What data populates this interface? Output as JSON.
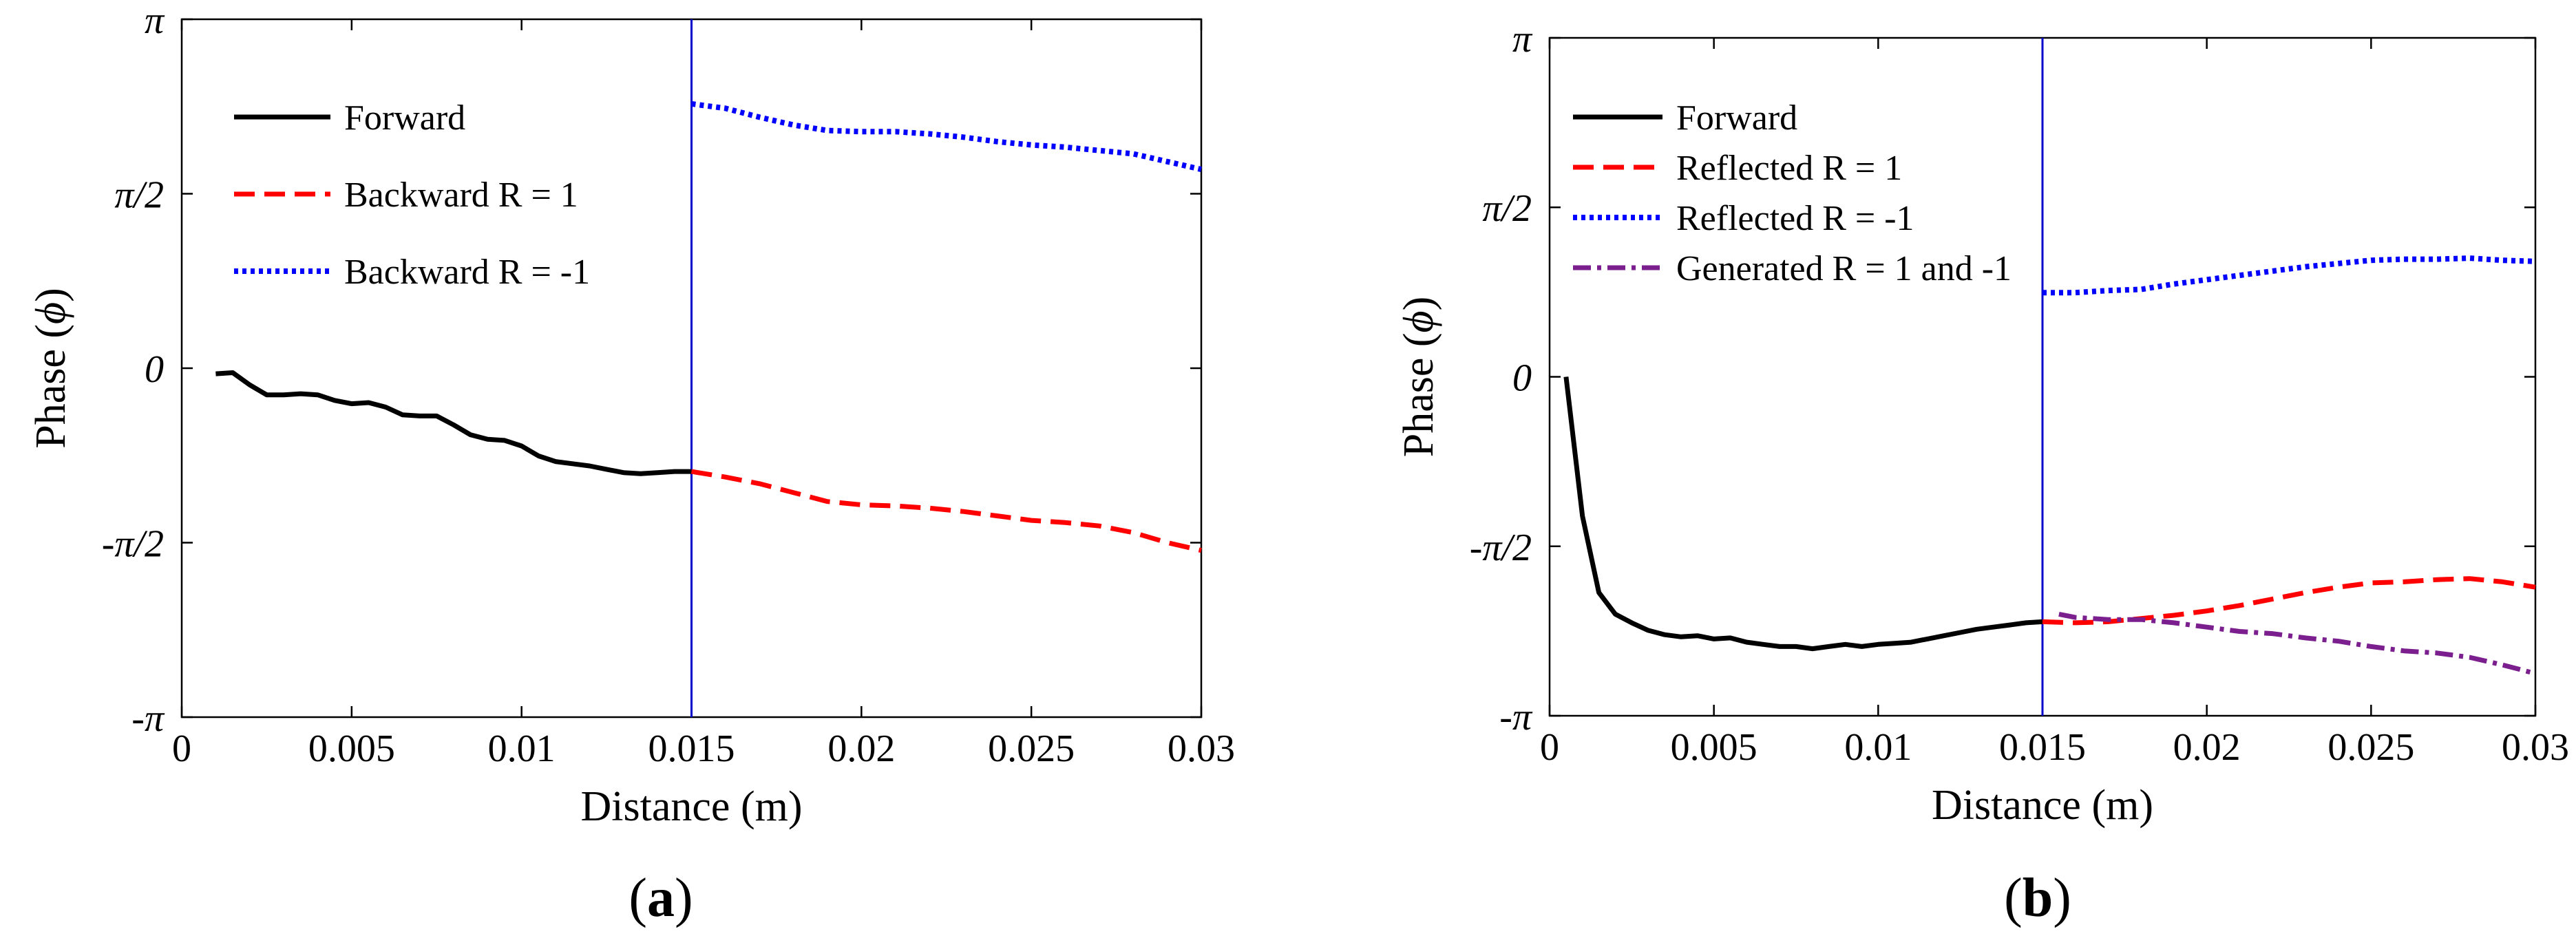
{
  "chart_data": [
    {
      "type": "line",
      "panel": "a",
      "panel_label": "a",
      "xlabel": "Distance (m)",
      "ylabel_prefix": "Phase (",
      "ylabel_symbol": "ϕ",
      "ylabel_suffix": ")",
      "xlim": [
        0,
        0.03
      ],
      "ylim": [
        -3.14159,
        3.14159
      ],
      "xticks": [
        0,
        0.005,
        0.01,
        0.015,
        0.02,
        0.025,
        0.03
      ],
      "xtick_labels": [
        "0",
        "0.005",
        "0.01",
        "0.015",
        "0.02",
        "0.025",
        "0.03"
      ],
      "yticks": [
        -3.14159,
        -1.5708,
        0,
        1.5708,
        3.14159
      ],
      "ytick_labels": [
        "-π",
        "-π/2",
        "0",
        "π/2",
        "π"
      ],
      "vline_x": 0.015,
      "vline_color": "#0000cc",
      "series": [
        {
          "name": "Forward",
          "color": "#000000",
          "style": "solid",
          "x": [
            0.001,
            0.0015,
            0.002,
            0.0025,
            0.003,
            0.0035,
            0.004,
            0.0045,
            0.005,
            0.0055,
            0.006,
            0.0065,
            0.007,
            0.0075,
            0.008,
            0.0085,
            0.009,
            0.0095,
            0.01,
            0.0105,
            0.011,
            0.0115,
            0.012,
            0.0125,
            0.013,
            0.0135,
            0.014,
            0.0145,
            0.015
          ],
          "y": [
            -0.05,
            -0.04,
            -0.15,
            -0.24,
            -0.24,
            -0.23,
            -0.24,
            -0.29,
            -0.32,
            -0.31,
            -0.35,
            -0.42,
            -0.43,
            -0.43,
            -0.51,
            -0.6,
            -0.64,
            -0.65,
            -0.7,
            -0.79,
            -0.84,
            -0.86,
            -0.88,
            -0.91,
            -0.94,
            -0.95,
            -0.94,
            -0.93,
            -0.93
          ]
        },
        {
          "name": "Backward R = 1",
          "color": "#ff0000",
          "style": "dashed",
          "x": [
            0.015,
            0.016,
            0.017,
            0.018,
            0.019,
            0.02,
            0.021,
            0.022,
            0.023,
            0.024,
            0.025,
            0.026,
            0.027,
            0.028,
            0.029,
            0.03
          ],
          "y": [
            -0.93,
            -0.98,
            -1.04,
            -1.12,
            -1.2,
            -1.23,
            -1.24,
            -1.26,
            -1.29,
            -1.33,
            -1.37,
            -1.39,
            -1.42,
            -1.48,
            -1.57,
            -1.64
          ]
        },
        {
          "name": "Backward R = -1",
          "color": "#0000ff",
          "style": "dotted",
          "x": [
            0.015,
            0.016,
            0.017,
            0.018,
            0.019,
            0.02,
            0.021,
            0.022,
            0.023,
            0.024,
            0.025,
            0.026,
            0.027,
            0.028,
            0.029,
            0.03
          ],
          "y": [
            2.38,
            2.34,
            2.26,
            2.19,
            2.14,
            2.13,
            2.13,
            2.11,
            2.08,
            2.04,
            2.01,
            1.99,
            1.96,
            1.93,
            1.86,
            1.79
          ]
        }
      ]
    },
    {
      "type": "line",
      "panel": "b",
      "panel_label": "b",
      "xlabel": "Distance (m)",
      "ylabel_prefix": "Phase (",
      "ylabel_symbol": "ϕ",
      "ylabel_suffix": ")",
      "xlim": [
        0,
        0.03
      ],
      "ylim": [
        -3.14159,
        3.14159
      ],
      "xticks": [
        0,
        0.005,
        0.01,
        0.015,
        0.02,
        0.025,
        0.03
      ],
      "xtick_labels": [
        "0",
        "0.005",
        "0.01",
        "0.015",
        "0.02",
        "0.025",
        "0.03"
      ],
      "yticks": [
        -3.14159,
        -1.5708,
        0,
        1.5708,
        3.14159
      ],
      "ytick_labels": [
        "-π",
        "-π/2",
        "0",
        "π/2",
        "π"
      ],
      "vline_x": 0.015,
      "vline_color": "#0000cc",
      "series": [
        {
          "name": "Forward",
          "color": "#000000",
          "style": "solid",
          "x": [
            0.0005,
            0.001,
            0.0015,
            0.002,
            0.0025,
            0.003,
            0.0035,
            0.004,
            0.0045,
            0.005,
            0.0055,
            0.006,
            0.0065,
            0.007,
            0.0075,
            0.008,
            0.0085,
            0.009,
            0.0095,
            0.01,
            0.0105,
            0.011,
            0.0115,
            0.012,
            0.0125,
            0.013,
            0.0135,
            0.014,
            0.0145,
            0.015
          ],
          "y": [
            0,
            -1.29,
            -2.0,
            -2.2,
            -2.28,
            -2.35,
            -2.39,
            -2.41,
            -2.4,
            -2.43,
            -2.42,
            -2.46,
            -2.48,
            -2.5,
            -2.5,
            -2.52,
            -2.5,
            -2.48,
            -2.5,
            -2.48,
            -2.47,
            -2.46,
            -2.43,
            -2.4,
            -2.37,
            -2.34,
            -2.32,
            -2.3,
            -2.28,
            -2.27
          ]
        },
        {
          "name": "Reflected R = 1",
          "color": "#ff0000",
          "style": "dashed",
          "x": [
            0.015,
            0.016,
            0.017,
            0.018,
            0.019,
            0.02,
            0.021,
            0.022,
            0.023,
            0.024,
            0.025,
            0.026,
            0.027,
            0.028,
            0.029,
            0.03
          ],
          "y": [
            -2.27,
            -2.28,
            -2.27,
            -2.24,
            -2.21,
            -2.17,
            -2.12,
            -2.06,
            -2.0,
            -1.95,
            -1.91,
            -1.9,
            -1.88,
            -1.87,
            -1.9,
            -1.95
          ]
        },
        {
          "name": "Reflected R = -1",
          "color": "#0000ff",
          "style": "dotted",
          "x": [
            0.015,
            0.016,
            0.017,
            0.018,
            0.019,
            0.02,
            0.021,
            0.022,
            0.023,
            0.024,
            0.025,
            0.026,
            0.027,
            0.028,
            0.029,
            0.03
          ],
          "y": [
            0.78,
            0.78,
            0.8,
            0.81,
            0.86,
            0.9,
            0.94,
            0.98,
            1.02,
            1.05,
            1.08,
            1.09,
            1.09,
            1.1,
            1.08,
            1.07
          ]
        },
        {
          "name": "Generated R = 1 and -1",
          "color": "#7b1f8f",
          "style": "dashdot",
          "x": [
            0.0155,
            0.016,
            0.017,
            0.018,
            0.019,
            0.02,
            0.021,
            0.022,
            0.023,
            0.024,
            0.025,
            0.026,
            0.027,
            0.028,
            0.029,
            0.03
          ],
          "y": [
            -2.2,
            -2.23,
            -2.25,
            -2.25,
            -2.28,
            -2.32,
            -2.36,
            -2.38,
            -2.42,
            -2.45,
            -2.5,
            -2.54,
            -2.56,
            -2.6,
            -2.67,
            -2.75
          ]
        }
      ]
    }
  ]
}
